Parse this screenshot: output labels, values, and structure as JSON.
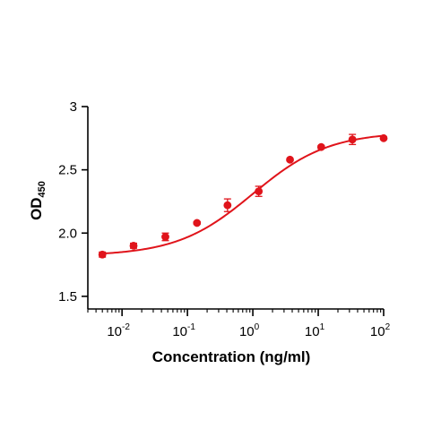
{
  "chart_data": {
    "type": "scatter",
    "title": "",
    "xlabel": "Concentration (ng/ml)",
    "ylabel": {
      "main": "OD",
      "sub": "450"
    },
    "x_scale": "log",
    "xlim": [
      0.003,
      100
    ],
    "ylim": [
      1.4,
      3.0
    ],
    "x_ticks": [
      {
        "value": 0.01,
        "base": "10",
        "exp": "-2"
      },
      {
        "value": 0.1,
        "base": "10",
        "exp": "-1"
      },
      {
        "value": 1,
        "base": "10",
        "exp": "0"
      },
      {
        "value": 10,
        "base": "10",
        "exp": "1"
      },
      {
        "value": 100,
        "base": "10",
        "exp": "2"
      }
    ],
    "y_ticks": [
      {
        "value": 1.5,
        "label": "1.5"
      },
      {
        "value": 2.0,
        "label": "2.0"
      },
      {
        "value": 2.5,
        "label": "2.5"
      },
      {
        "value": 3.0,
        "label": "3"
      }
    ],
    "grid": false,
    "legend": "none",
    "series": [
      {
        "color": "#e0141b",
        "x": [
          0.005,
          0.015,
          0.046,
          0.14,
          0.41,
          1.23,
          3.7,
          11.1,
          33.3,
          100
        ],
        "y": [
          1.83,
          1.9,
          1.97,
          2.08,
          2.22,
          2.33,
          2.58,
          2.68,
          2.74,
          2.75
        ],
        "error": [
          0.02,
          0.02,
          0.03,
          0.01,
          0.05,
          0.04,
          0.01,
          0.01,
          0.04,
          0.01
        ],
        "fit": {
          "model": "four-parameter logistic",
          "bottom": 1.82,
          "top": 2.8,
          "ec50": 1.0,
          "hill": 0.75
        }
      }
    ]
  }
}
